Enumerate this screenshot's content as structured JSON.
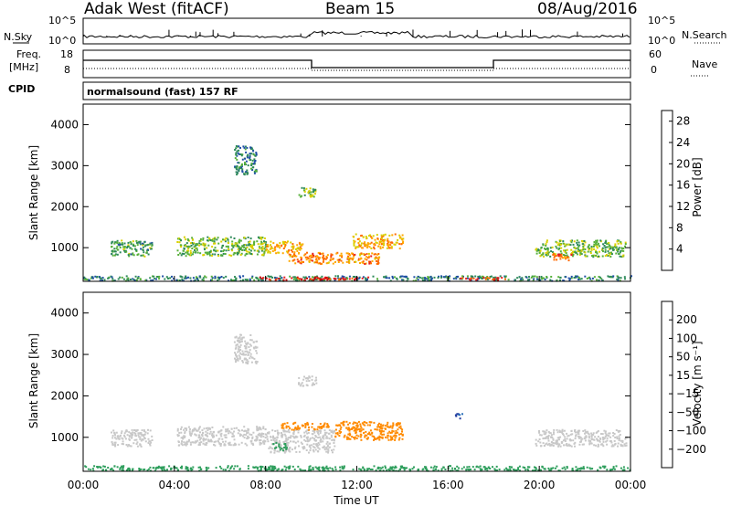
{
  "header": {
    "radar": "Adak West (fitACF)",
    "beam": "Beam 15",
    "date": "08/Aug/2016"
  },
  "params": {
    "nsky_label": "N.Sky",
    "nsearch_label": "N.Search",
    "freq_label_line1": "Freq.",
    "freq_label_line2": "[MHz]",
    "nave_label": "Nave",
    "cpid_label": "CPID",
    "cpid_value": "normalsound (fast) 157 RF",
    "noise_ticks_left": [
      "10^5",
      "10^0"
    ],
    "noise_ticks_right": [
      "10^5",
      "10^0"
    ],
    "freq_ticks": [
      "18",
      "8"
    ],
    "nave_ticks": [
      "60",
      "0"
    ]
  },
  "colors": {
    "power": [
      "#1400ff",
      "#1f4fa5",
      "#2e8a5a",
      "#57b03a",
      "#d8d000",
      "#ffa800",
      "#ff6a00",
      "#e81d1d",
      "#c80000"
    ],
    "velocity": [
      "#d41515",
      "#f03a00",
      "#ff8a00",
      "#ffbe20",
      "#c8c8c8",
      "#c8c8c8",
      "#55c830",
      "#2e9e5c",
      "#2b6fb8",
      "#1e3a9e"
    ]
  },
  "chart_data": [
    {
      "type": "heatmap",
      "title": "",
      "xlabel": "Time UT",
      "ylabel": "Slant Range [km]",
      "x_ticks": [
        "00:00",
        "04:00",
        "08:00",
        "12:00",
        "16:00",
        "20:00",
        "00:00"
      ],
      "xlim": [
        0,
        24
      ],
      "ylim": [
        180,
        4500
      ],
      "y_ticks": [
        1000,
        2000,
        3000,
        4000
      ],
      "colorbar": {
        "label": "Power [dB]",
        "ticks": [
          4,
          8,
          12,
          16,
          20,
          24,
          28
        ],
        "range": [
          0,
          30
        ]
      },
      "regions": [
        {
          "t0": 0.0,
          "t1": 24.0,
          "r0": 210,
          "r1": 330,
          "level": 8
        },
        {
          "t0": 1.2,
          "t1": 3.0,
          "r0": 800,
          "r1": 1200,
          "level": 10
        },
        {
          "t0": 4.1,
          "t1": 8.0,
          "r0": 820,
          "r1": 1280,
          "level": 12
        },
        {
          "t0": 8.0,
          "t1": 9.6,
          "r0": 880,
          "r1": 1180,
          "level": 18
        },
        {
          "t0": 9.0,
          "t1": 13.0,
          "r0": 620,
          "r1": 900,
          "level": 20
        },
        {
          "t0": 11.8,
          "t1": 14.0,
          "r0": 1000,
          "r1": 1350,
          "level": 18
        },
        {
          "t0": 9.4,
          "t1": 10.2,
          "r0": 2250,
          "r1": 2500,
          "level": 12
        },
        {
          "t0": 7.6,
          "t1": 12.6,
          "r0": 230,
          "r1": 300,
          "level": 26
        },
        {
          "t0": 16.5,
          "t1": 18.5,
          "r0": 220,
          "r1": 290,
          "level": 24
        },
        {
          "t0": 19.8,
          "t1": 23.8,
          "r0": 800,
          "r1": 1200,
          "level": 12
        },
        {
          "t0": 20.5,
          "t1": 21.4,
          "r0": 700,
          "r1": 880,
          "level": 20
        },
        {
          "t0": 6.6,
          "t1": 7.6,
          "r0": 2800,
          "r1": 3500,
          "level": 8
        }
      ]
    },
    {
      "type": "heatmap",
      "title": "",
      "xlabel": "Time UT",
      "ylabel": "Slant Range [km]",
      "x_ticks": [
        "00:00",
        "04:00",
        "08:00",
        "12:00",
        "16:00",
        "20:00",
        "00:00"
      ],
      "xlim": [
        0,
        24
      ],
      "ylim": [
        180,
        4500
      ],
      "y_ticks": [
        1000,
        2000,
        3000,
        4000
      ],
      "colorbar": {
        "label": "Velocity [m s⁻¹]",
        "ticks": [
          200,
          100,
          50,
          15,
          -15,
          -50,
          -100,
          -200
        ],
        "range": [
          -250,
          250
        ]
      },
      "regions": [
        {
          "t0": 0.0,
          "t1": 24.0,
          "r0": 210,
          "r1": 330,
          "level": 60
        },
        {
          "t0": 1.2,
          "t1": 3.0,
          "r0": 800,
          "r1": 1200,
          "level": 0
        },
        {
          "t0": 4.1,
          "t1": 8.0,
          "r0": 820,
          "r1": 1280,
          "level": 0
        },
        {
          "t0": 8.0,
          "t1": 11.0,
          "r0": 650,
          "r1": 1200,
          "level": 5
        },
        {
          "t0": 11.0,
          "t1": 14.0,
          "r0": 950,
          "r1": 1400,
          "level": -80
        },
        {
          "t0": 8.6,
          "t1": 10.8,
          "r0": 1200,
          "r1": 1380,
          "level": -60
        },
        {
          "t0": 9.4,
          "t1": 10.2,
          "r0": 2250,
          "r1": 2500,
          "level": 0
        },
        {
          "t0": 19.8,
          "t1": 23.8,
          "r0": 800,
          "r1": 1200,
          "level": 0
        },
        {
          "t0": 8.3,
          "t1": 8.9,
          "r0": 700,
          "r1": 900,
          "level": 70
        },
        {
          "t0": 6.6,
          "t1": 7.6,
          "r0": 2800,
          "r1": 3500,
          "level": 0
        },
        {
          "t0": 16.3,
          "t1": 16.6,
          "r0": 1450,
          "r1": 1600,
          "level": 200
        }
      ]
    }
  ]
}
